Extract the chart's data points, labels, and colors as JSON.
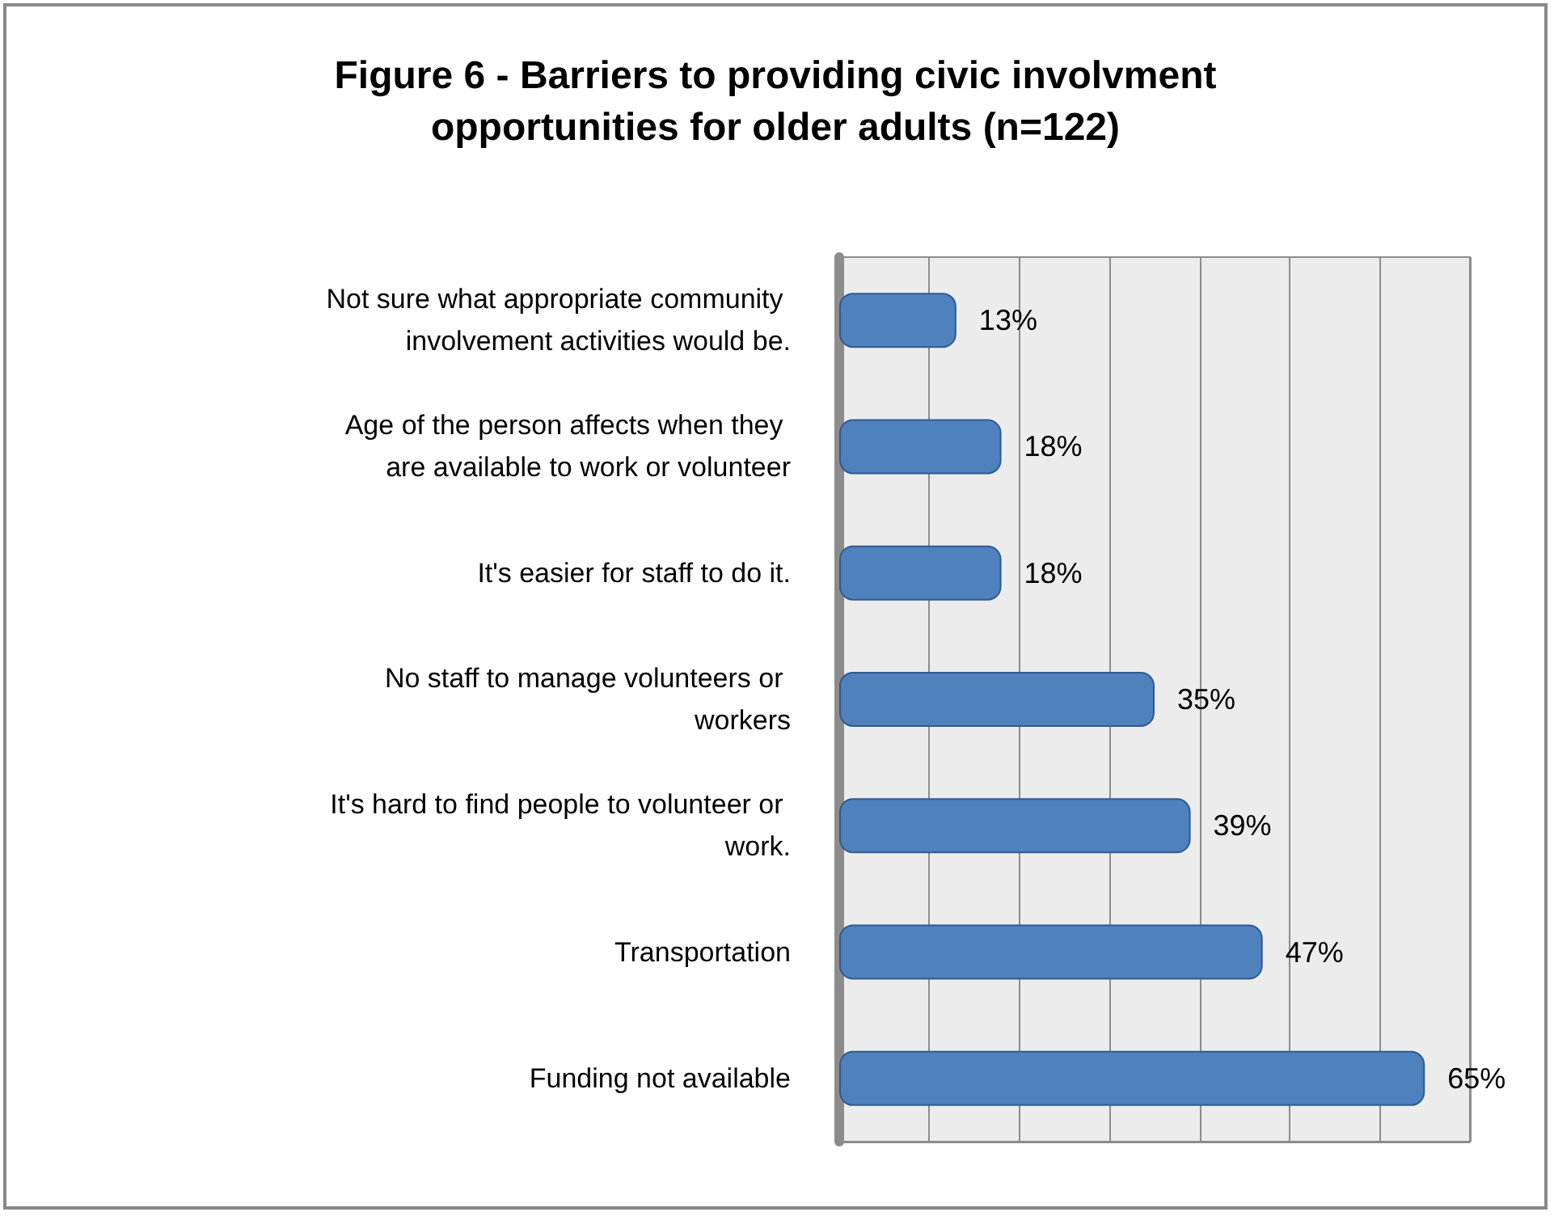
{
  "chart_data": {
    "type": "bar",
    "orientation": "horizontal",
    "title": "Figure 6 - Barriers to providing civic involvment\nopportunities for older adults (n=122)",
    "categories": [
      "Not sure what appropriate community involvement activities would be.",
      "Age of the person affects when they are available to work or volunteer",
      "It's easier for staff to do it.",
      "No staff to manage volunteers or workers",
      "It's hard to find people to volunteer or work.",
      "Transportation",
      "Funding not available"
    ],
    "values": [
      13,
      18,
      18,
      35,
      39,
      47,
      65
    ],
    "value_labels": [
      "13%",
      "18%",
      "18%",
      "35%",
      "39%",
      "47%",
      "65%"
    ],
    "color": "#4f81bd",
    "grid": "x",
    "tick_labels": "y"
  }
}
